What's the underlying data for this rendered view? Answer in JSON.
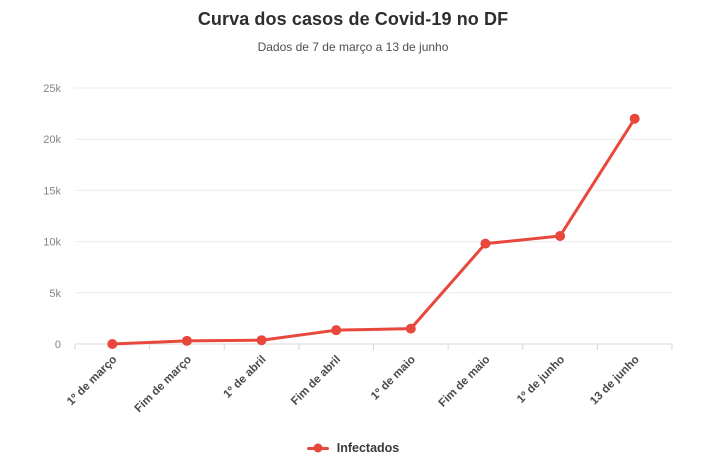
{
  "chart_data": {
    "type": "line",
    "title": "Curva dos casos de Covid-19 no DF",
    "subtitle": "Dados de 7 de março a 13 de junho",
    "categories": [
      "1º de março",
      "Fim de março",
      "1º de abril",
      "Fim de abril",
      "1º de maio",
      "Fim de maio",
      "1º de junho",
      "13 de junho"
    ],
    "series": [
      {
        "name": "Infectados",
        "color": "#e8473c",
        "values": [
          1,
          310,
          370,
          1350,
          1500,
          9800,
          10550,
          22000
        ]
      }
    ],
    "ylim": [
      0,
      25000
    ],
    "yticks": [
      {
        "value": 0,
        "label": "0"
      },
      {
        "value": 5000,
        "label": "5k"
      },
      {
        "value": 10000,
        "label": "10k"
      },
      {
        "value": 15000,
        "label": "15k"
      },
      {
        "value": 20000,
        "label": "20k"
      },
      {
        "value": 25000,
        "label": "25k"
      }
    ],
    "grid": true,
    "legend_position": "bottom",
    "colors": {
      "series_red": "#e8473c",
      "grid_line": "#ececec",
      "axis_line": "#d8d8d8",
      "y_label": "#858585",
      "x_label": "#4a4a4a",
      "title": "#2e2e2e",
      "subtitle": "#4f4f4f"
    }
  }
}
